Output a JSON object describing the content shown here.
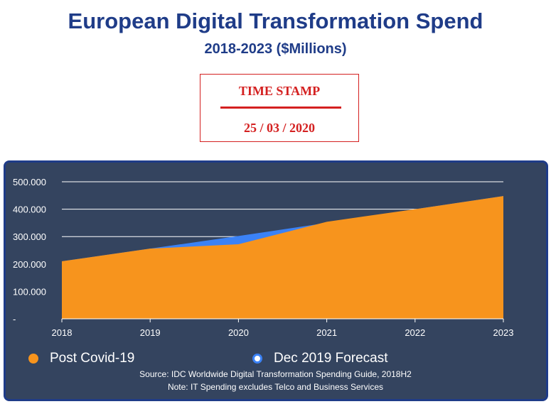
{
  "colors": {
    "title": "#1f3c88",
    "stamp": "#d42020",
    "panel_bg": "#34445f",
    "post_covid": "#f7941d",
    "forecast": "#3b82f6"
  },
  "chart_data": {
    "type": "area",
    "title": "European Digital Transformation Spend",
    "subtitle": "2018-2023 ($Millions)",
    "x": [
      "2018",
      "2019",
      "2020",
      "2021",
      "2022",
      "2023"
    ],
    "y_ticks": [
      "-",
      "100.000",
      "200.000",
      "300.000",
      "400.000",
      "500.000"
    ],
    "ylim": [
      0,
      500000
    ],
    "grid": true,
    "legend_position": "bottom",
    "series": [
      {
        "name": "Dec 2019 Forecast",
        "values": [
          210000,
          256000,
          302000,
          350000,
          400000,
          448000
        ],
        "color": "#3b82f6"
      },
      {
        "name": "Post Covid-19",
        "values": [
          210000,
          256000,
          272000,
          354000,
          400000,
          448000
        ],
        "color": "#f7941d"
      }
    ]
  },
  "stamp": {
    "title": "TIME STAMP",
    "date": "25 / 03 / 2020"
  },
  "notes": {
    "source": "Source: IDC Worldwide Digital Transformation Spending Guide, 2018H2",
    "note": "Note: IT Spending excludes Telco and Business Services"
  }
}
